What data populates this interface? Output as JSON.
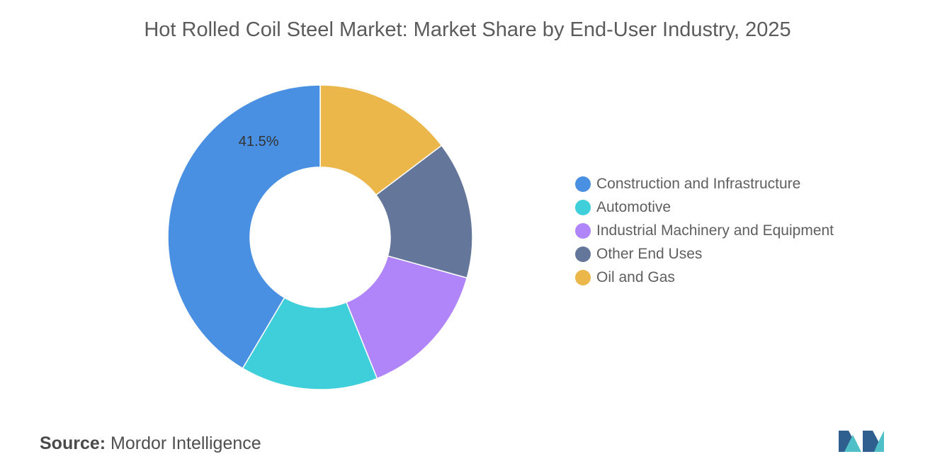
{
  "chart_data": {
    "type": "pie",
    "title": "Hot Rolled Coil Steel Market: Market Share by End-User Industry, 2025",
    "categories": [
      "Construction and Infrastructure",
      "Automotive",
      "Industrial Machinery and Equipment",
      "Other End Uses",
      "Oil and Gas"
    ],
    "values": [
      41.5,
      14.6,
      14.6,
      14.6,
      14.7
    ],
    "data_labels": [
      "41.5%",
      "",
      "",
      "",
      ""
    ],
    "colors": [
      "#4a90e2",
      "#3ecfda",
      "#b085fa",
      "#64779a",
      "#ebb64a"
    ],
    "donut": true,
    "legend_position": "right"
  },
  "source": {
    "label": "Source:",
    "text": "Mordor Intelligence"
  }
}
